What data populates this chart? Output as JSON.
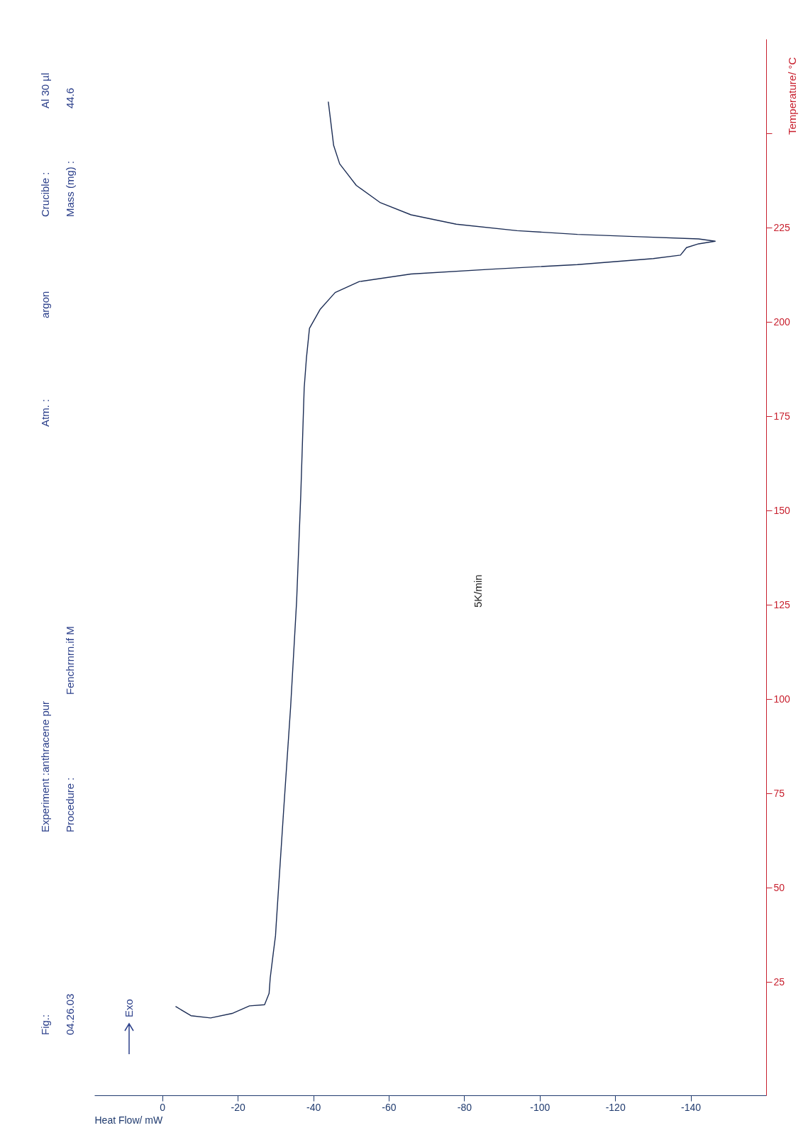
{
  "chart_data": {
    "type": "line",
    "xlabel": "Heat Flow/ mW",
    "ylabel": "Temperature/ °C",
    "x": [
      -3.6,
      -7.6,
      -12.8,
      -18.5,
      -23.1,
      -27.1,
      -28.3,
      -28.6,
      -29.4,
      -30.0,
      -30.2,
      -32.1,
      -34.0,
      -35.6,
      -36.7,
      -37.6,
      -38.2,
      -39.0,
      -41.8,
      -45.8,
      -52.2,
      -65.9,
      -87.5,
      -110,
      -130.1,
      -137.3,
      -138.9,
      -142.1,
      -146.5,
      -142.1,
      -126.1,
      -110,
      -94,
      -77.9,
      -65.9,
      -57.8,
      -51.4,
      -47.0,
      -45.4,
      -44.6,
      -44.0
    ],
    "series": [
      {
        "color": "#1c2d55",
        "values": [
          18.5,
          16.1,
          15.5,
          16.7,
          18.7,
          19.0,
          22.0,
          26.1,
          32.6,
          37.3,
          40.6,
          69.7,
          97.9,
          126.1,
          154.3,
          182.5,
          190.5,
          198.3,
          203.3,
          207.8,
          210.7,
          212.7,
          214.0,
          215.2,
          216.8,
          217.7,
          219.7,
          220.7,
          221.4,
          222.0,
          222.6,
          223.2,
          224.2,
          225.9,
          228.4,
          231.6,
          236.2,
          241.9,
          246.8,
          253.4,
          258.3
        ]
      }
    ],
    "ylim": [
      -5,
      275
    ],
    "yticks": [
      25,
      50,
      75,
      100,
      125,
      150,
      175,
      200,
      225,
      {
        "value": 250,
        "label": null
      }
    ],
    "xlim": [
      18,
      -160
    ],
    "xticks": [
      0,
      -20,
      -40,
      -60,
      -80,
      -100,
      -120,
      -140
    ],
    "annotations": [
      "Fig.:",
      "04.26.03",
      "Experiment :anthracene pur",
      "Procedure :",
      "Fenchrnrn.if M",
      "Atm. :",
      "argon",
      "Crucible :",
      "Al 30 µl",
      "Mass (mg) :",
      "44.6",
      "Exo",
      "5K/min"
    ]
  }
}
